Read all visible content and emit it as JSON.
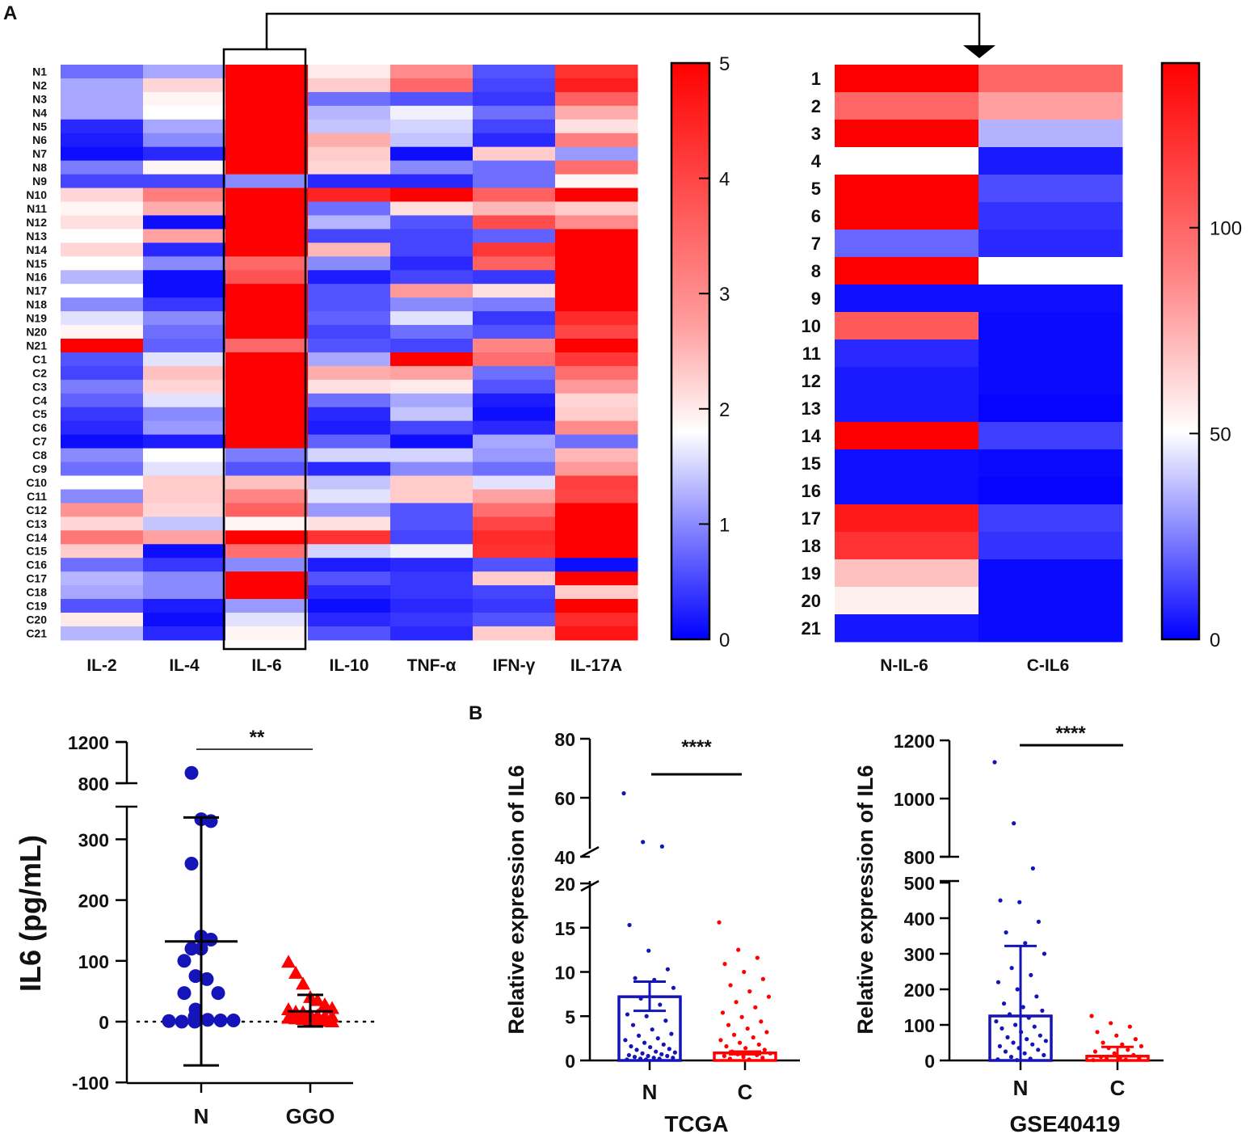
{
  "panel_labels": {
    "a": "A",
    "b": "B"
  },
  "colors": {
    "low": "#0000ff",
    "mid": "#ffffff",
    "high": "#ff0000",
    "n_group": "#1414b8",
    "c_group": "#ff0000",
    "line": "#000000"
  },
  "chart_data": [
    {
      "id": "heatmap_cytokines",
      "type": "heatmap",
      "rows": [
        "N1",
        "N2",
        "N3",
        "N4",
        "N5",
        "N6",
        "N7",
        "N8",
        "N9",
        "N10",
        "N11",
        "N12",
        "N13",
        "N14",
        "N15",
        "N16",
        "N17",
        "N18",
        "N19",
        "N20",
        "N21",
        "C1",
        "C2",
        "C3",
        "C4",
        "C5",
        "C6",
        "C7",
        "C8",
        "C9",
        "C10",
        "C11",
        "C12",
        "C13",
        "C14",
        "C15",
        "C16",
        "C17",
        "C18",
        "C19",
        "C20",
        "C21"
      ],
      "columns": [
        "IL-2",
        "IL-4",
        "IL-6",
        "IL-10",
        "TNF-α",
        "IFN-γ",
        "IL-17A"
      ],
      "highlighted_column": "IL-6",
      "colorbar": {
        "min": 0,
        "max": 5,
        "ticks": [
          "0",
          "1",
          "2",
          "3",
          "4",
          "5"
        ]
      },
      "values": [
        [
          0.8,
          1.2,
          5,
          2.0,
          3.0,
          0.6,
          4.3
        ],
        [
          1.2,
          2.2,
          5,
          2.3,
          3.5,
          0.5,
          4.6
        ],
        [
          1.2,
          1.9,
          5,
          0.8,
          0.6,
          0.4,
          3.6
        ],
        [
          1.2,
          1.8,
          5,
          1.3,
          1.7,
          0.8,
          2.6
        ],
        [
          0.3,
          1.2,
          5,
          1.4,
          1.5,
          0.5,
          2.1
        ],
        [
          0.2,
          1.0,
          5,
          2.6,
          1.4,
          0.3,
          3.2
        ],
        [
          0.1,
          0.3,
          5,
          2.3,
          0.1,
          2.3,
          1.1
        ],
        [
          0.9,
          1.9,
          5,
          2.2,
          1.0,
          0.8,
          3.4
        ],
        [
          0.5,
          0.5,
          1.0,
          0.3,
          0.3,
          0.8,
          1.9
        ],
        [
          2.2,
          3.2,
          5,
          4.5,
          5,
          3.6,
          5
        ],
        [
          1.9,
          2.6,
          5,
          0.8,
          2.1,
          2.5,
          2.3
        ],
        [
          2.1,
          0.1,
          5,
          1.3,
          0.6,
          3.9,
          3.0
        ],
        [
          1.8,
          2.7,
          5,
          0.5,
          0.5,
          0.7,
          5
        ],
        [
          2.2,
          0.3,
          5,
          2.5,
          0.5,
          4.2,
          5
        ],
        [
          1.8,
          1.0,
          3.5,
          1.0,
          0.3,
          3.6,
          5
        ],
        [
          1.3,
          0.1,
          3.8,
          0.2,
          0.5,
          0.4,
          5
        ],
        [
          1.8,
          0.1,
          5,
          0.6,
          2.8,
          2.1,
          5
        ],
        [
          1.0,
          0.4,
          5,
          0.6,
          1.0,
          0.9,
          5
        ],
        [
          1.6,
          1.0,
          5,
          0.7,
          1.6,
          0.4,
          4.4
        ],
        [
          1.9,
          0.8,
          5,
          0.5,
          0.8,
          0.6,
          4.0
        ],
        [
          5,
          0.7,
          3.5,
          0.6,
          0.5,
          3.1,
          5
        ],
        [
          0.6,
          1.6,
          5,
          1.2,
          5,
          3.4,
          4.2
        ],
        [
          0.5,
          2.4,
          5,
          2.6,
          2.7,
          0.8,
          3.4
        ],
        [
          0.9,
          2.2,
          5,
          2.1,
          2.0,
          0.6,
          2.8
        ],
        [
          0.7,
          1.6,
          5,
          0.8,
          1.2,
          0.2,
          2.2
        ],
        [
          0.4,
          1.0,
          5,
          0.3,
          1.4,
          0.1,
          2.3
        ],
        [
          0.3,
          1.1,
          5,
          0.2,
          0.5,
          0.3,
          3.0
        ],
        [
          0.1,
          0.2,
          5,
          0.7,
          0.1,
          1.2,
          0.8
        ],
        [
          1.0,
          1.8,
          0.9,
          1.5,
          1.5,
          1.1,
          2.5
        ],
        [
          0.8,
          1.6,
          0.6,
          0.3,
          1.0,
          0.8,
          2.8
        ],
        [
          1.8,
          2.3,
          2.4,
          1.4,
          2.3,
          1.6,
          4.1
        ],
        [
          1.0,
          2.3,
          3.1,
          1.6,
          2.3,
          2.7,
          4.0
        ],
        [
          2.9,
          2.2,
          3.6,
          1.1,
          0.6,
          3.4,
          5
        ],
        [
          2.2,
          1.4,
          1.9,
          2.1,
          0.6,
          4.0,
          5
        ],
        [
          3.3,
          2.7,
          5,
          4.3,
          0.5,
          4.4,
          5
        ],
        [
          2.3,
          0.1,
          3.4,
          1.5,
          1.7,
          4.3,
          5
        ],
        [
          0.8,
          0.4,
          1.0,
          0.2,
          0.3,
          0.6,
          0.1
        ],
        [
          1.3,
          1.0,
          5,
          0.6,
          0.4,
          2.3,
          5
        ],
        [
          1.2,
          1.0,
          5,
          0.3,
          0.4,
          0.5,
          2.3
        ],
        [
          0.6,
          0.2,
          1.1,
          0.1,
          0.3,
          0.4,
          5
        ],
        [
          2.0,
          0.1,
          1.6,
          0.3,
          0.4,
          0.6,
          4.4
        ],
        [
          1.3,
          0.3,
          1.9,
          0.6,
          0.3,
          2.3,
          4.7
        ]
      ]
    },
    {
      "id": "heatmap_il6_paired",
      "type": "heatmap",
      "rows": [
        "1",
        "2",
        "3",
        "4",
        "5",
        "6",
        "7",
        "8",
        "9",
        "10",
        "11",
        "12",
        "13",
        "14",
        "15",
        "16",
        "17",
        "18",
        "19",
        "20",
        "21"
      ],
      "columns": [
        "N-IL-6",
        "C-IL6"
      ],
      "colorbar": {
        "min": 0,
        "max": 140,
        "ticks": [
          "0",
          "50",
          "100"
        ]
      },
      "values": [
        [
          140,
          100
        ],
        [
          100,
          80
        ],
        [
          140,
          35
        ],
        [
          null,
          5
        ],
        [
          140,
          15
        ],
        [
          140,
          10
        ],
        [
          20,
          8
        ],
        [
          140,
          null
        ],
        [
          3,
          3
        ],
        [
          105,
          2
        ],
        [
          8,
          2
        ],
        [
          5,
          2
        ],
        [
          5,
          1
        ],
        [
          140,
          12
        ],
        [
          3,
          2
        ],
        [
          3,
          1
        ],
        [
          130,
          12
        ],
        [
          120,
          10
        ],
        [
          70,
          2
        ],
        [
          55,
          2
        ],
        [
          4,
          2
        ]
      ]
    },
    {
      "id": "il6_serum",
      "type": "scatter",
      "ylabel": "IL6 (pg/mL)",
      "categories": [
        "N",
        "GGO"
      ],
      "ylim_lower": [
        -100,
        350
      ],
      "ylim_upper": [
        800,
        1200
      ],
      "yticks_lower": [
        "-100",
        "0",
        "100",
        "200",
        "300"
      ],
      "yticks_upper": [
        "800",
        "1200"
      ],
      "significance": "**",
      "series": [
        {
          "name": "N",
          "mean": 132,
          "sd_low": -72,
          "sd_high": 336,
          "values": [
            900,
            333,
            330,
            260,
            140,
            135,
            120,
            120,
            100,
            75,
            70,
            47,
            47,
            20,
            8,
            3,
            2,
            2,
            1,
            0,
            0
          ]
        },
        {
          "name": "GGO",
          "mean": 17,
          "sd_low": -8,
          "sd_high": 44,
          "values": [
            98,
            80,
            62,
            40,
            35,
            28,
            22,
            20,
            16,
            15,
            12,
            10,
            9,
            8,
            6,
            5,
            4,
            3,
            2,
            1,
            0
          ]
        }
      ]
    },
    {
      "id": "tcga",
      "type": "bar",
      "title": "TCGA",
      "ylabel": "Relative expression of IL6",
      "categories": [
        "N",
        "C"
      ],
      "yticks_lower": [
        "0",
        "5",
        "10",
        "15",
        "20"
      ],
      "yticks_upper": [
        "40",
        "60",
        "80"
      ],
      "ylim_lower": [
        0,
        20
      ],
      "ylim_upper": [
        40,
        80
      ],
      "significance": "****",
      "series": [
        {
          "name": "N",
          "mean": 7.2,
          "sem_low": 5.6,
          "sem_high": 8.9,
          "points": [
            61.5,
            45,
            43.5,
            15.3,
            12.4,
            10.3,
            9.3,
            9.1,
            8.2,
            7.0,
            6.3,
            5.2,
            5.0,
            4.5,
            4.0,
            3.5,
            3.0,
            2.8,
            2.5,
            2.3,
            2.0,
            1.8,
            1.6,
            1.5,
            1.3,
            1.2,
            1.0,
            0.9,
            0.8,
            0.7,
            0.6,
            0.5,
            0.5,
            0.4,
            0.3,
            0.3,
            0.2,
            0.2,
            0.1,
            0.1
          ]
        },
        {
          "name": "C",
          "mean": 0.85,
          "sem_low": 0.7,
          "sem_high": 1.0,
          "points": [
            15.6,
            12.5,
            11.6,
            10.9,
            10.0,
            9.2,
            8.5,
            7.8,
            7.2,
            6.6,
            6.0,
            5.4,
            4.9,
            4.4,
            4.0,
            3.6,
            3.2,
            2.9,
            2.6,
            2.3,
            2.0,
            1.8,
            1.6,
            1.4,
            1.2,
            1.0,
            0.9,
            0.8,
            0.7,
            0.6,
            0.5,
            0.4,
            0.3,
            0.2,
            0.1
          ]
        }
      ]
    },
    {
      "id": "gse40419",
      "type": "bar",
      "title": "GSE40419",
      "ylabel": "Relative expression of IL6",
      "categories": [
        "N",
        "C"
      ],
      "yticks_lower": [
        "0",
        "100",
        "200",
        "300",
        "400",
        "500"
      ],
      "yticks_upper": [
        "800",
        "1000",
        "1200"
      ],
      "ylim_lower": [
        0,
        500
      ],
      "ylim_upper": [
        750,
        1200
      ],
      "significance": "****",
      "series": [
        {
          "name": "N",
          "mean": 125,
          "sd_low": 0,
          "sd_high": 322,
          "points": [
            1125,
            915,
            760,
            450,
            445,
            390,
            360,
            330,
            300,
            260,
            240,
            220,
            200,
            180,
            160,
            150,
            140,
            130,
            120,
            110,
            100,
            95,
            90,
            80,
            70,
            65,
            60,
            55,
            50,
            45,
            40,
            35,
            30,
            25,
            20,
            15,
            10,
            5,
            3,
            1
          ]
        },
        {
          "name": "C",
          "mean": 12,
          "sd_low": 0,
          "sd_high": 38,
          "points": [
            125,
            105,
            95,
            80,
            70,
            60,
            50,
            45,
            40,
            35,
            30,
            25,
            20,
            15,
            10,
            8,
            6,
            4,
            2,
            1
          ]
        }
      ]
    }
  ]
}
